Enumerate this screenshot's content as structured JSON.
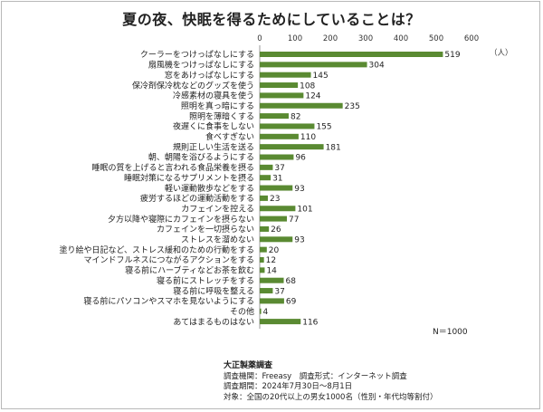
{
  "chart_data": {
    "type": "bar",
    "orientation": "horizontal",
    "title": "夏の夜、快眠を得るためにしていることは？",
    "unit_label": "（人）",
    "xlim": [
      0,
      600
    ],
    "xticks": [
      0,
      100,
      200,
      300,
      400,
      500,
      600
    ],
    "grid": false,
    "bar_color": "#5a8a32",
    "categories": [
      "クーラーをつけっぱなしにする",
      "扇風機をつけっぱなしにする",
      "窓をあけっぱなしにする",
      "保冷剤保冷枕などのグッズを使う",
      "冷感素材の寝具を使う",
      "照明を真っ暗にする",
      "照明を薄暗くする",
      "夜遅くに食事をしない",
      "食べすぎない",
      "規則正しい生活を送る",
      "朝、朝陽を浴びるようにする",
      "睡眠の質を上げると言われる食品栄養を摂る",
      "睡眠対策になるサプリメントを摂る",
      "軽い運動散歩などをする",
      "疲労するほどの運動活動をする",
      "カフェインを控える",
      "夕方以降や寝際にカフェインを摂らない",
      "カフェインを一切摂らない",
      "ストレスを溜めない",
      "塗り絵や日記など、ストレス緩和のための行動をする",
      "マインドフルネスにつながるアクションをする",
      "寝る前にハーブティなどお茶を飲む",
      "寝る前にストレッチをする",
      "寝る前に呼吸を整える",
      "寝る前にパソコンやスマホを見ないようにする",
      "その他",
      "あてはまるものはない"
    ],
    "values": [
      519,
      304,
      145,
      108,
      124,
      235,
      82,
      155,
      110,
      181,
      96,
      37,
      31,
      93,
      23,
      101,
      77,
      26,
      93,
      20,
      12,
      14,
      68,
      37,
      69,
      4,
      116
    ],
    "annotation": "N＝1000"
  },
  "source": {
    "title": "大正製薬調査",
    "lines": [
      "調査機関：Freeasy　調査形式：インターネット調査",
      "調査期間：2024年7月30日～8月1日",
      "対象：全国の20代以上の男女1000名（性別・年代均等割付）"
    ]
  }
}
